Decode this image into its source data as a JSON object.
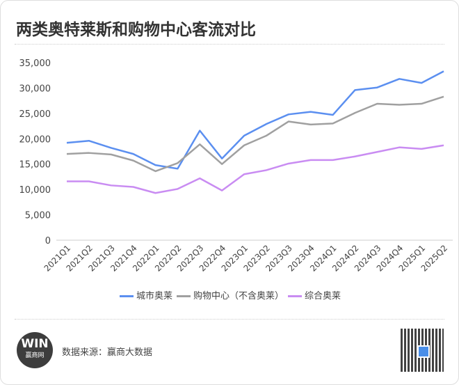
{
  "title": "两类奥特莱斯和购物中心客流对比",
  "footer": {
    "source": "数据来源：赢商大数据",
    "logo_text": "WIN",
    "logo_sub": "赢商网"
  },
  "chart_data": {
    "type": "line",
    "title": "两类奥特莱斯和购物中心客流对比",
    "xlabel": "",
    "ylabel": "",
    "ylim": [
      0,
      35000
    ],
    "yticks": [
      0,
      5000,
      10000,
      15000,
      20000,
      25000,
      30000,
      35000
    ],
    "ytick_labels": [
      "0",
      "5,000",
      "10,000",
      "15,000",
      "20,000",
      "25,000",
      "30,000",
      "35,000"
    ],
    "grid": false,
    "legend": "bottom",
    "categories": [
      "2021Q1",
      "2021Q2",
      "2021Q3",
      "2021Q4",
      "2022Q1",
      "2022Q2",
      "2022Q3",
      "2022Q4",
      "2023Q1",
      "2023Q2",
      "2023Q3",
      "2023Q4",
      "2024Q1",
      "2024Q2",
      "2024Q3",
      "2024Q4",
      "2025Q1",
      "2025Q2"
    ],
    "series": [
      {
        "name": "城市奥莱",
        "color": "#5b8ff0",
        "values": [
          19200,
          19600,
          18200,
          17000,
          14800,
          14100,
          21600,
          16100,
          20600,
          22900,
          24800,
          25300,
          24700,
          29600,
          30100,
          31800,
          31000,
          33300
        ]
      },
      {
        "name": "购物中心（不含奥莱）",
        "color": "#a0a0a0",
        "values": [
          17000,
          17200,
          16900,
          15700,
          13600,
          15200,
          18900,
          15000,
          18700,
          20600,
          23400,
          22800,
          23000,
          25100,
          26900,
          26700,
          26900,
          28300
        ]
      },
      {
        "name": "综合奥莱",
        "color": "#c98cf2",
        "values": [
          11600,
          11600,
          10800,
          10500,
          9300,
          10100,
          12200,
          9800,
          13000,
          13800,
          15100,
          15800,
          15800,
          16500,
          17400,
          18300,
          18000,
          18700
        ]
      }
    ]
  }
}
